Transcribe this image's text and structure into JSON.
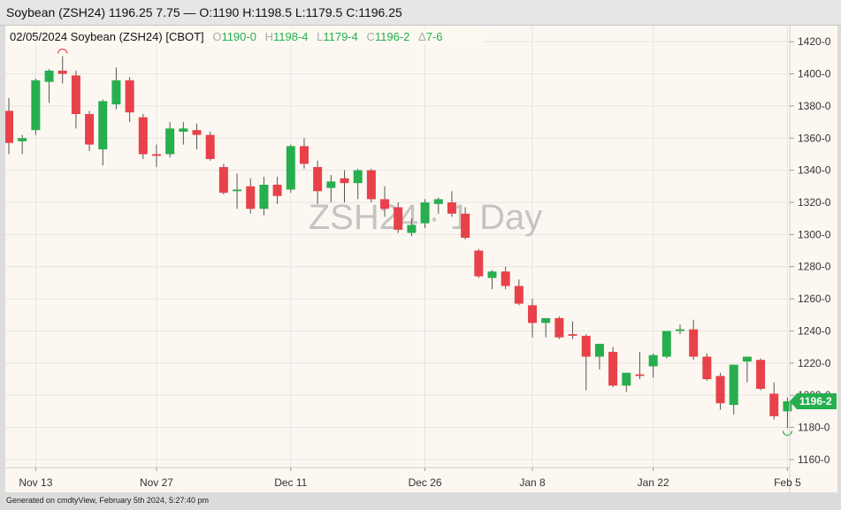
{
  "header": {
    "title": "Soybean (ZSH24) 1196.25 7.75 — O:1190 H:1198.5 L:1179.5 C:1196.25"
  },
  "legend_bar": {
    "date_symbol": "02/05/2024 Soybean (ZSH24) [CBOT]",
    "o_key": "O",
    "o_val": "1190-0",
    "h_key": "H",
    "h_val": "1198-4",
    "l_key": "L",
    "l_val": "1179-4",
    "c_key": "C",
    "c_val": "1196-2",
    "d_key": "Δ",
    "d_val": "7-6"
  },
  "watermark": "ZSH24 · 1 Day",
  "last_price_label": "1196-2",
  "footer": "Generated on cmdtyView, February 5th 2024, 5:27:40 pm",
  "colors": {
    "up": "#27ae4e",
    "down": "#e8414a",
    "background": "#fcf8f1",
    "grid": "#e4e4e4"
  },
  "chart_data": {
    "type": "candlestick",
    "title": "Soybean (ZSH24)",
    "ylim": [
      1155,
      1430
    ],
    "y_ticks": [
      1160,
      1180,
      1200,
      1220,
      1240,
      1260,
      1280,
      1300,
      1320,
      1340,
      1360,
      1380,
      1400,
      1420
    ],
    "y_tick_labels": [
      "1160-0",
      "1180-0",
      "1200-0",
      "1220-0",
      "1240-0",
      "1260-0",
      "1280-0",
      "1300-0",
      "1320-0",
      "1340-0",
      "1360-0",
      "1380-0",
      "1400-0",
      "1420-0"
    ],
    "x_tick_labels": [
      {
        "label": "Nov 13",
        "index": 2
      },
      {
        "label": "Nov 27",
        "index": 11
      },
      {
        "label": "Dec 11",
        "index": 21
      },
      {
        "label": "Dec 26",
        "index": 31
      },
      {
        "label": "Jan 8",
        "index": 39
      },
      {
        "label": "Jan 22",
        "index": 48
      },
      {
        "label": "Feb 5",
        "index": 58
      }
    ],
    "grid": true,
    "high_marker_index": 4,
    "low_marker_index": 58,
    "candles": [
      {
        "o": 1377,
        "h": 1385,
        "l": 1350,
        "c": 1357
      },
      {
        "o": 1358,
        "h": 1362,
        "l": 1350,
        "c": 1360
      },
      {
        "o": 1365,
        "h": 1397,
        "l": 1362,
        "c": 1396
      },
      {
        "o": 1395,
        "h": 1403,
        "l": 1382,
        "c": 1402
      },
      {
        "o": 1402,
        "h": 1411,
        "l": 1394,
        "c": 1400
      },
      {
        "o": 1399,
        "h": 1402,
        "l": 1366,
        "c": 1375
      },
      {
        "o": 1375,
        "h": 1377,
        "l": 1352,
        "c": 1356
      },
      {
        "o": 1353,
        "h": 1384,
        "l": 1343,
        "c": 1383
      },
      {
        "o": 1381,
        "h": 1404,
        "l": 1378,
        "c": 1396
      },
      {
        "o": 1396,
        "h": 1398,
        "l": 1370,
        "c": 1376
      },
      {
        "o": 1373,
        "h": 1375,
        "l": 1347,
        "c": 1350
      },
      {
        "o": 1350,
        "h": 1356,
        "l": 1342,
        "c": 1349
      },
      {
        "o": 1350,
        "h": 1370,
        "l": 1348,
        "c": 1366
      },
      {
        "o": 1364,
        "h": 1370,
        "l": 1356,
        "c": 1366
      },
      {
        "o": 1365,
        "h": 1369,
        "l": 1353,
        "c": 1362
      },
      {
        "o": 1362,
        "h": 1364,
        "l": 1346,
        "c": 1347
      },
      {
        "o": 1342,
        "h": 1344,
        "l": 1325,
        "c": 1326
      },
      {
        "o": 1327,
        "h": 1338,
        "l": 1316,
        "c": 1328
      },
      {
        "o": 1330,
        "h": 1335,
        "l": 1313,
        "c": 1316
      },
      {
        "o": 1316,
        "h": 1336,
        "l": 1312,
        "c": 1331
      },
      {
        "o": 1331,
        "h": 1336,
        "l": 1319,
        "c": 1324
      },
      {
        "o": 1328,
        "h": 1356,
        "l": 1326,
        "c": 1355
      },
      {
        "o": 1355,
        "h": 1360,
        "l": 1341,
        "c": 1344
      },
      {
        "o": 1342,
        "h": 1346,
        "l": 1319,
        "c": 1327
      },
      {
        "o": 1329,
        "h": 1337,
        "l": 1320,
        "c": 1333
      },
      {
        "o": 1335,
        "h": 1340,
        "l": 1320,
        "c": 1332
      },
      {
        "o": 1332,
        "h": 1341,
        "l": 1322,
        "c": 1340
      },
      {
        "o": 1340,
        "h": 1341,
        "l": 1320,
        "c": 1322
      },
      {
        "o": 1322,
        "h": 1330,
        "l": 1311,
        "c": 1316
      },
      {
        "o": 1317,
        "h": 1320,
        "l": 1301,
        "c": 1303
      },
      {
        "o": 1301,
        "h": 1310,
        "l": 1299,
        "c": 1306
      },
      {
        "o": 1307,
        "h": 1322,
        "l": 1304,
        "c": 1320
      },
      {
        "o": 1319,
        "h": 1323,
        "l": 1313,
        "c": 1322
      },
      {
        "o": 1320,
        "h": 1327,
        "l": 1311,
        "c": 1313
      },
      {
        "o": 1313,
        "h": 1317,
        "l": 1297,
        "c": 1298
      },
      {
        "o": 1290,
        "h": 1291,
        "l": 1273,
        "c": 1274
      },
      {
        "o": 1273,
        "h": 1278,
        "l": 1266,
        "c": 1277
      },
      {
        "o": 1277,
        "h": 1280,
        "l": 1266,
        "c": 1268
      },
      {
        "o": 1268,
        "h": 1272,
        "l": 1256,
        "c": 1257
      },
      {
        "o": 1256,
        "h": 1260,
        "l": 1236,
        "c": 1245
      },
      {
        "o": 1245,
        "h": 1248,
        "l": 1236,
        "c": 1248
      },
      {
        "o": 1248,
        "h": 1249,
        "l": 1235,
        "c": 1236
      },
      {
        "o": 1238,
        "h": 1246,
        "l": 1235,
        "c": 1237
      },
      {
        "o": 1237,
        "h": 1238,
        "l": 1203,
        "c": 1224
      },
      {
        "o": 1224,
        "h": 1232,
        "l": 1216,
        "c": 1232
      },
      {
        "o": 1227,
        "h": 1230,
        "l": 1205,
        "c": 1206
      },
      {
        "o": 1206,
        "h": 1214,
        "l": 1202,
        "c": 1214
      },
      {
        "o": 1213,
        "h": 1227,
        "l": 1210,
        "c": 1212
      },
      {
        "o": 1218,
        "h": 1226,
        "l": 1211,
        "c": 1225
      },
      {
        "o": 1224,
        "h": 1240,
        "l": 1223,
        "c": 1240
      },
      {
        "o": 1240,
        "h": 1244,
        "l": 1238,
        "c": 1241
      },
      {
        "o": 1241,
        "h": 1247,
        "l": 1222,
        "c": 1224
      },
      {
        "o": 1224,
        "h": 1226,
        "l": 1209,
        "c": 1210
      },
      {
        "o": 1212,
        "h": 1214,
        "l": 1191,
        "c": 1195
      },
      {
        "o": 1194,
        "h": 1219,
        "l": 1188,
        "c": 1219
      },
      {
        "o": 1221,
        "h": 1224,
        "l": 1208,
        "c": 1224
      },
      {
        "o": 1222,
        "h": 1223,
        "l": 1203,
        "c": 1204
      },
      {
        "o": 1201,
        "h": 1208,
        "l": 1185,
        "c": 1187
      },
      {
        "o": 1190,
        "h": 1198.5,
        "l": 1179.5,
        "c": 1196.25
      }
    ]
  }
}
